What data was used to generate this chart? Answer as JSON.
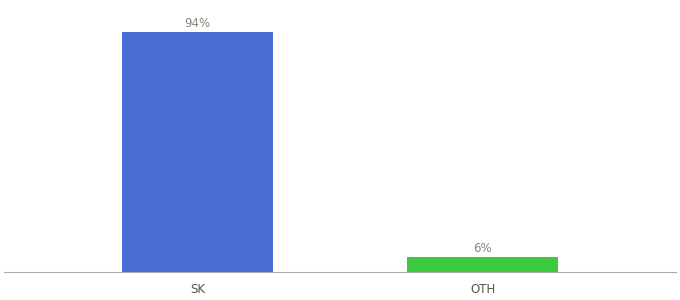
{
  "categories": [
    "SK",
    "OTH"
  ],
  "values": [
    94,
    6
  ],
  "bar_colors": [
    "#4A6FD4",
    "#3DC93D"
  ],
  "labels": [
    "94%",
    "6%"
  ],
  "background_color": "#ffffff",
  "ylim": [
    0,
    105
  ],
  "bar_width": 0.18,
  "label_fontsize": 8.5,
  "tick_fontsize": 8.5,
  "x_positions": [
    0.28,
    0.62
  ]
}
